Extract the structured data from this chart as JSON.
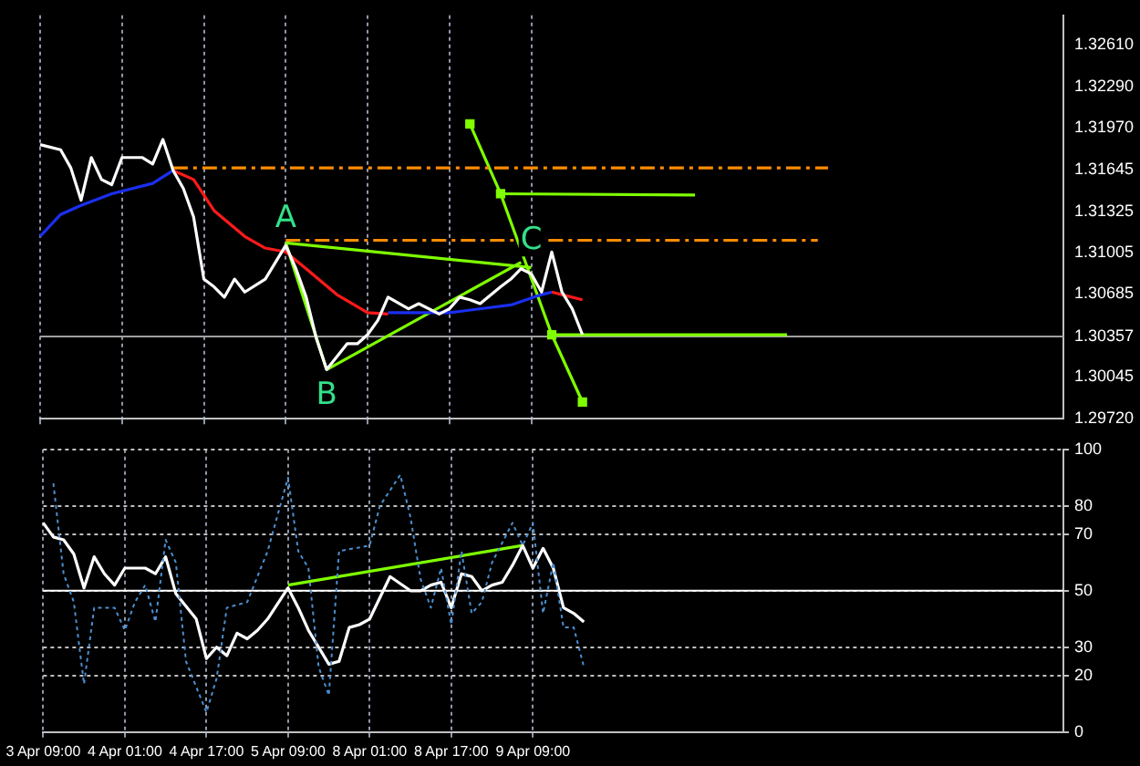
{
  "chart_data": [
    {
      "type": "line",
      "ylim": [
        1.2972,
        1.3284
      ],
      "categories": [
        "3 Apr 09:00",
        null,
        null,
        null,
        null,
        null,
        null,
        null,
        "4 Apr 01:00",
        null,
        null,
        null,
        null,
        null,
        null,
        null,
        "4 Apr 17:00",
        null,
        null,
        null,
        null,
        null,
        null,
        null,
        "5 Apr 09:00",
        null,
        null,
        null,
        null,
        null,
        null,
        null,
        "8 Apr 01:00",
        null,
        null,
        null,
        null,
        null,
        null,
        null,
        "8 Apr 17:00",
        null,
        null,
        null,
        null,
        null,
        null,
        null,
        "9 Apr 09:00",
        null,
        null,
        null,
        null,
        null,
        null,
        null,
        null,
        null,
        null,
        null,
        null,
        null,
        null,
        null,
        null,
        null,
        null,
        null,
        null,
        null,
        null,
        null,
        null,
        null,
        null,
        null,
        null,
        null,
        null,
        null,
        null,
        null,
        null,
        null,
        null,
        null,
        null,
        null,
        null,
        null,
        null,
        null,
        null,
        null,
        null,
        null,
        null,
        null,
        null,
        null,
        null
      ],
      "yticks": [
        {
          "value": 1.3261,
          "label": "1.32610"
        },
        {
          "value": 1.3229,
          "label": "1.32290"
        },
        {
          "value": 1.3197,
          "label": "1.31970"
        },
        {
          "value": 1.31645,
          "label": "1.31645"
        },
        {
          "value": 1.31325,
          "label": "1.31325"
        },
        {
          "value": 1.31005,
          "label": "1.31005"
        },
        {
          "value": 1.30685,
          "label": "1.30685"
        },
        1.30357,
        {
          "value": 1.30045,
          "label": "1.30045"
        },
        {
          "value": 1.2972,
          "label": "1.29720"
        }
      ],
      "tick_labels": "y",
      "grid": "x",
      "legend": false,
      "marker": "none",
      "line_style": "solid",
      "series": [
        {
          "color": "#ffffff",
          "values": [
            1.3184,
            null,
            1.318,
            1.3166,
            1.3141,
            1.3174,
            1.3157,
            1.3153,
            1.3174,
            null,
            1.3174,
            1.3169,
            1.3188,
            1.3164,
            1.315,
            1.3128,
            1.308,
            1.3074,
            1.3066,
            1.308,
            1.307,
            null,
            1.308,
            null,
            1.3106,
            1.3088,
            1.3066,
            1.3034,
            1.301,
            null,
            1.303,
            1.303,
            1.3037,
            1.3048,
            1.3066,
            null,
            1.3057,
            1.3061,
            null,
            1.3053,
            1.3057,
            1.3066,
            1.3064,
            1.3061,
            null,
            1.3074,
            1.308,
            1.3088,
            1.3084,
            1.307,
            1.3101,
            1.307,
            1.3057,
            1.3037,
            null,
            null,
            null,
            null,
            null,
            null,
            null,
            null,
            null,
            null,
            null,
            null,
            null,
            null,
            null,
            null,
            null,
            null,
            null,
            null,
            null,
            null,
            null,
            null,
            null,
            null,
            null,
            null,
            null,
            null,
            null,
            null,
            null,
            null,
            null,
            null,
            null,
            null,
            null,
            null,
            null,
            null,
            null,
            null,
            null,
            null,
            null
          ]
        },
        {
          "color": "#1a2ff0",
          "values": [
            1.3113,
            null,
            1.313,
            null,
            1.3137,
            null,
            null,
            1.3146,
            null,
            null,
            null,
            1.3154,
            null,
            1.3164,
            null,
            null,
            null,
            null,
            null,
            null,
            null,
            null,
            null,
            null,
            null,
            null,
            null,
            null,
            null,
            null,
            null,
            null,
            null,
            null,
            null,
            null,
            null,
            null,
            null,
            null,
            null,
            null,
            null,
            null,
            null,
            null,
            null,
            null,
            null,
            null,
            null,
            null,
            null,
            null,
            null,
            null,
            null,
            null,
            null,
            null,
            null,
            null,
            null,
            null,
            null,
            null,
            null,
            null,
            null,
            null,
            null,
            null,
            null,
            null,
            null,
            null,
            null,
            null,
            null,
            null,
            null,
            null,
            null,
            null,
            null,
            null,
            null,
            null,
            null,
            null,
            null,
            null,
            null,
            null,
            null,
            null,
            null,
            null,
            null,
            null,
            null
          ]
        },
        {
          "color": "#ff1a1a",
          "values": [
            null,
            null,
            null,
            null,
            null,
            null,
            null,
            null,
            null,
            null,
            null,
            null,
            null,
            1.3164,
            null,
            1.3157,
            null,
            1.3133,
            null,
            null,
            1.3113,
            null,
            1.3104,
            null,
            1.3101,
            null,
            1.3088,
            null,
            null,
            1.3068,
            null,
            null,
            1.3054,
            null,
            1.3053,
            null,
            null,
            null,
            null,
            null,
            null,
            null,
            null,
            null,
            null,
            null,
            null,
            null,
            null,
            null,
            null,
            null,
            null,
            null,
            null,
            null,
            null,
            null,
            null,
            null,
            null,
            null,
            null,
            null,
            null,
            null,
            null,
            null,
            null,
            null,
            null,
            null,
            null,
            null,
            null,
            null,
            null,
            null,
            null,
            null,
            null,
            null,
            null,
            null,
            null,
            null,
            null,
            null,
            null,
            null,
            null,
            null,
            null,
            null,
            null,
            null,
            null,
            null,
            null,
            null,
            null
          ]
        },
        {
          "color": "#1a2ff0",
          "values": [
            null,
            null,
            null,
            null,
            null,
            null,
            null,
            null,
            null,
            null,
            null,
            null,
            null,
            null,
            null,
            null,
            null,
            null,
            null,
            null,
            null,
            null,
            null,
            null,
            null,
            null,
            null,
            null,
            null,
            null,
            null,
            null,
            null,
            null,
            1.3054,
            null,
            null,
            null,
            null,
            null,
            1.3054,
            null,
            null,
            null,
            null,
            null,
            1.306,
            null,
            null,
            1.3068,
            1.307,
            null,
            null,
            null,
            null,
            null,
            null,
            null,
            null,
            null,
            null,
            null,
            null,
            null,
            null,
            null,
            null,
            null,
            null,
            null,
            null,
            null,
            null,
            null,
            null,
            null,
            null,
            null,
            null,
            null,
            null,
            null,
            null,
            null,
            null,
            null,
            null,
            null,
            null,
            null,
            null,
            null,
            null,
            null,
            null,
            null,
            null,
            null,
            null,
            null,
            null
          ]
        },
        {
          "color": "#ff1a1a",
          "values": [
            null,
            null,
            null,
            null,
            null,
            null,
            null,
            null,
            null,
            null,
            null,
            null,
            null,
            null,
            null,
            null,
            null,
            null,
            null,
            null,
            null,
            null,
            null,
            null,
            null,
            null,
            null,
            null,
            null,
            null,
            null,
            null,
            null,
            null,
            null,
            null,
            null,
            null,
            null,
            null,
            null,
            null,
            null,
            null,
            null,
            null,
            null,
            null,
            null,
            null,
            1.307,
            1.3068,
            null,
            1.3064,
            null,
            null,
            null,
            null,
            null,
            null,
            null,
            null,
            null,
            null,
            null,
            null,
            null,
            null,
            null,
            null,
            null,
            null,
            null,
            null,
            null,
            null,
            null,
            null,
            null,
            null,
            null,
            null,
            null,
            null,
            null,
            null,
            null,
            null,
            null,
            null,
            null,
            null,
            null,
            null,
            null,
            null,
            null,
            null,
            null,
            null,
            null
          ]
        },
        {
          "color": "#ff8c00",
          "line_style": "dashed",
          "values": [
            null,
            null,
            null,
            null,
            null,
            null,
            null,
            null,
            null,
            null,
            null,
            null,
            null,
            1.3166,
            null,
            null,
            null,
            null,
            null,
            null,
            null,
            null,
            null,
            null,
            null,
            null,
            null,
            null,
            null,
            null,
            null,
            null,
            null,
            null,
            null,
            null,
            null,
            null,
            null,
            null,
            null,
            null,
            null,
            null,
            null,
            null,
            null,
            null,
            null,
            null,
            null,
            null,
            null,
            null,
            null,
            null,
            null,
            null,
            null,
            null,
            null,
            null,
            null,
            null,
            null,
            null,
            null,
            null,
            null,
            null,
            null,
            null,
            null,
            null,
            null,
            null,
            null,
            1.3166,
            null,
            null,
            null,
            null,
            null,
            null,
            null,
            null,
            null,
            null,
            null,
            null,
            null,
            null,
            null,
            null,
            null,
            null,
            null,
            null,
            null,
            null,
            null
          ]
        },
        {
          "color": "#ff8c00",
          "line_style": "dashed",
          "values": [
            null,
            null,
            null,
            null,
            null,
            null,
            null,
            null,
            null,
            null,
            null,
            null,
            null,
            null,
            null,
            null,
            null,
            null,
            null,
            null,
            null,
            null,
            null,
            null,
            1.311,
            null,
            null,
            null,
            null,
            null,
            null,
            null,
            null,
            null,
            null,
            null,
            null,
            null,
            null,
            null,
            null,
            null,
            null,
            null,
            null,
            null,
            null,
            null,
            null,
            null,
            null,
            null,
            null,
            null,
            null,
            null,
            null,
            null,
            null,
            null,
            null,
            null,
            null,
            null,
            null,
            null,
            null,
            null,
            null,
            null,
            null,
            null,
            null,
            null,
            null,
            null,
            1.311,
            null,
            null,
            null,
            null,
            null,
            null,
            null,
            null,
            null,
            null,
            null,
            null,
            null,
            null,
            null,
            null,
            null,
            null,
            null,
            null,
            null,
            null,
            null,
            null
          ]
        },
        {
          "color": "#7fff00",
          "values": [
            null,
            null,
            null,
            null,
            null,
            null,
            null,
            null,
            null,
            null,
            null,
            null,
            null,
            null,
            null,
            null,
            null,
            null,
            null,
            null,
            null,
            null,
            null,
            null,
            1.3108,
            null,
            null,
            null,
            null,
            null,
            null,
            null,
            null,
            null,
            null,
            null,
            null,
            null,
            null,
            null,
            null,
            null,
            null,
            null,
            null,
            null,
            null,
            null,
            1.3089,
            null,
            null,
            null,
            null,
            null,
            null,
            null,
            null,
            null,
            null,
            null,
            null,
            null,
            null,
            null,
            null,
            null,
            null,
            null,
            null,
            null,
            null,
            null,
            null,
            null,
            null,
            null,
            null,
            null,
            null,
            null,
            null,
            null,
            null,
            null,
            null,
            null,
            null,
            null,
            null,
            null,
            null,
            null,
            null,
            null,
            null,
            null,
            null,
            null,
            null,
            null,
            null
          ]
        },
        {
          "color": "#7fff00",
          "values": [
            null,
            null,
            null,
            null,
            null,
            null,
            null,
            null,
            null,
            null,
            null,
            null,
            null,
            null,
            null,
            null,
            null,
            null,
            null,
            null,
            null,
            null,
            null,
            null,
            1.3108,
            null,
            null,
            null,
            1.301,
            null,
            null,
            null,
            null,
            null,
            null,
            null,
            null,
            null,
            null,
            null,
            null,
            null,
            null,
            null,
            null,
            null,
            null,
            null,
            null,
            null,
            null,
            null,
            null,
            null,
            null,
            null,
            null,
            null,
            null,
            null,
            null,
            null,
            null,
            null,
            null,
            null,
            null,
            null,
            null,
            null,
            null,
            null,
            null,
            null,
            null,
            null,
            null,
            null,
            null,
            null,
            null,
            null,
            null,
            null,
            null,
            null,
            null,
            null,
            null,
            null,
            null,
            null,
            null,
            null,
            null,
            null,
            null,
            null,
            null,
            null,
            null
          ]
        },
        {
          "color": "#7fff00",
          "values": [
            null,
            null,
            null,
            null,
            null,
            null,
            null,
            null,
            null,
            null,
            null,
            null,
            null,
            null,
            null,
            null,
            null,
            null,
            null,
            null,
            null,
            null,
            null,
            null,
            null,
            null,
            null,
            null,
            1.301,
            null,
            null,
            null,
            null,
            null,
            null,
            null,
            null,
            null,
            null,
            null,
            null,
            null,
            null,
            null,
            null,
            null,
            null,
            1.3093,
            null,
            null,
            null,
            null,
            null,
            null,
            null,
            null,
            null,
            null,
            null,
            null,
            null,
            null,
            null,
            null,
            null,
            null,
            null,
            null,
            null,
            null,
            null,
            null,
            null,
            null,
            null,
            null,
            null,
            null,
            null,
            null,
            null,
            null,
            null,
            null,
            null,
            null,
            null,
            null,
            null,
            null,
            null,
            null,
            null,
            null,
            null,
            null,
            null,
            null,
            null,
            null,
            null
          ]
        },
        {
          "color": "#7fff00",
          "marker": "square",
          "values": [
            null,
            null,
            null,
            null,
            null,
            null,
            null,
            null,
            null,
            null,
            null,
            null,
            null,
            null,
            null,
            null,
            null,
            null,
            null,
            null,
            null,
            null,
            null,
            null,
            null,
            null,
            null,
            null,
            null,
            null,
            null,
            null,
            null,
            null,
            null,
            null,
            null,
            null,
            null,
            null,
            null,
            null,
            1.32,
            null,
            null,
            1.3146,
            null,
            null,
            null,
            null,
            1.3037,
            null,
            null,
            1.2985,
            null,
            null,
            null,
            null,
            null,
            null,
            null,
            null,
            null,
            null,
            null,
            null,
            null,
            null,
            null,
            null,
            null,
            null,
            null,
            null,
            null,
            null,
            null,
            null,
            null,
            null,
            null,
            null,
            null,
            null,
            null,
            null,
            null,
            null,
            null,
            null,
            null,
            null,
            null,
            null,
            null,
            null,
            null,
            null,
            null,
            null,
            null
          ]
        },
        {
          "color": "#7fff00",
          "values": [
            null,
            null,
            null,
            null,
            null,
            null,
            null,
            null,
            null,
            null,
            null,
            null,
            null,
            null,
            null,
            null,
            null,
            null,
            null,
            null,
            null,
            null,
            null,
            null,
            null,
            null,
            null,
            null,
            null,
            null,
            null,
            null,
            null,
            null,
            null,
            null,
            null,
            null,
            null,
            null,
            null,
            null,
            null,
            null,
            null,
            1.3146,
            null,
            null,
            null,
            null,
            null,
            null,
            null,
            null,
            null,
            null,
            null,
            null,
            null,
            null,
            null,
            null,
            null,
            null,
            1.3145,
            null,
            null,
            null,
            null,
            null,
            null,
            null,
            null,
            null,
            null,
            null,
            null,
            null,
            null,
            null,
            null,
            null,
            null,
            null,
            null,
            null,
            null,
            null,
            null,
            null,
            null,
            null,
            null,
            null,
            null,
            null,
            null,
            null,
            null,
            null,
            null
          ]
        },
        {
          "color": "#7fff00",
          "values": [
            null,
            null,
            null,
            null,
            null,
            null,
            null,
            null,
            null,
            null,
            null,
            null,
            null,
            null,
            null,
            null,
            null,
            null,
            null,
            null,
            null,
            null,
            null,
            null,
            null,
            null,
            null,
            null,
            null,
            null,
            null,
            null,
            null,
            null,
            null,
            null,
            null,
            null,
            null,
            null,
            null,
            null,
            null,
            null,
            null,
            null,
            null,
            null,
            null,
            null,
            1.3037,
            null,
            null,
            null,
            null,
            null,
            null,
            null,
            null,
            null,
            null,
            null,
            null,
            null,
            null,
            null,
            null,
            null,
            null,
            null,
            null,
            null,
            null,
            1.3037,
            null,
            null,
            null,
            null,
            null,
            null,
            null,
            null,
            null,
            null,
            null,
            null,
            null,
            null,
            null,
            null,
            null,
            null,
            null,
            null,
            null,
            null,
            null,
            null,
            null,
            null,
            null
          ]
        }
      ],
      "ref_lines": [
        {
          "axis": "y",
          "value": 1.30357,
          "color": "#a0a0a0"
        }
      ],
      "annotations": [
        {
          "text": "A",
          "x": "5 Apr 09:00",
          "y": 1.3106
        },
        {
          "text": "B",
          "y": 1.301
        },
        {
          "text": "C",
          "x": "9 Apr 09:00",
          "y": 1.3089
        }
      ]
    },
    {
      "type": "line",
      "ylim": [
        0,
        100
      ],
      "categories": [
        "3 Apr 09:00",
        null,
        null,
        null,
        null,
        null,
        null,
        null,
        "4 Apr 01:00",
        null,
        null,
        null,
        null,
        null,
        null,
        null,
        "4 Apr 17:00",
        null,
        null,
        null,
        null,
        null,
        null,
        null,
        "5 Apr 09:00",
        null,
        null,
        null,
        null,
        null,
        null,
        null,
        "8 Apr 01:00",
        null,
        null,
        null,
        null,
        null,
        null,
        null,
        "8 Apr 17:00",
        null,
        null,
        null,
        null,
        null,
        null,
        null,
        "9 Apr 09:00",
        null,
        null,
        null,
        null,
        null,
        null,
        null,
        null,
        null,
        null,
        null,
        null,
        null,
        null,
        null,
        null,
        null,
        null,
        null,
        null,
        null,
        null,
        null,
        null,
        null,
        null,
        null,
        null,
        null,
        null,
        null,
        null,
        null,
        null,
        null,
        null,
        null,
        null,
        null,
        null,
        null,
        null,
        null,
        null,
        null,
        null,
        null,
        null,
        null,
        null,
        null,
        null
      ],
      "yticks": [
        0,
        20,
        30,
        50,
        70,
        80,
        100
      ],
      "grid": true,
      "legend": false,
      "marker": "none",
      "line_style": "solid",
      "series": [
        {
          "color": "#4a8fd0",
          "line_style": "dotted",
          "values": [
            null,
            88,
            56,
            46,
            17,
            44,
            null,
            44,
            36,
            46,
            52,
            39,
            68,
            60,
            25,
            null,
            7,
            19,
            44,
            null,
            46,
            null,
            64,
            null,
            90,
            64,
            58,
            23,
            13,
            64,
            null,
            null,
            66,
            80,
            null,
            91,
            76,
            54,
            44,
            58,
            38,
            64,
            42,
            46,
            60,
            null,
            74,
            66,
            74,
            42,
            60,
            37,
            37,
            23,
            null,
            null,
            null,
            null,
            null,
            null,
            null,
            null,
            null,
            null,
            null,
            null,
            null,
            null,
            null,
            null,
            null,
            null,
            null,
            null,
            null,
            null,
            null,
            null,
            null,
            null,
            null,
            null,
            null,
            null,
            null,
            null,
            null,
            null,
            null,
            null,
            null,
            null,
            null,
            null,
            null,
            null,
            null,
            null,
            null,
            null,
            null
          ]
        },
        {
          "color": "#ffffff",
          "values": [
            74,
            69,
            68,
            63,
            51,
            62,
            56,
            52,
            58,
            null,
            58,
            56,
            62,
            49,
            null,
            40,
            26,
            30,
            27,
            35,
            33,
            36,
            40,
            null,
            51,
            44,
            36,
            null,
            24,
            25,
            37,
            38,
            40,
            null,
            55,
            null,
            50,
            50,
            52,
            53,
            44,
            56,
            55,
            50,
            52,
            53,
            59,
            66,
            58,
            65,
            58,
            44,
            42,
            39,
            null,
            null,
            null,
            null,
            null,
            null,
            null,
            null,
            null,
            null,
            null,
            null,
            null,
            null,
            null,
            null,
            null,
            null,
            null,
            null,
            null,
            null,
            null,
            null,
            null,
            null,
            null,
            null,
            null,
            null,
            null,
            null,
            null,
            null,
            null,
            null,
            null,
            null,
            null,
            null,
            null,
            null,
            null,
            null,
            null,
            null,
            null
          ]
        },
        {
          "color": "#7fff00",
          "values": [
            null,
            null,
            null,
            null,
            null,
            null,
            null,
            null,
            null,
            null,
            null,
            null,
            null,
            null,
            null,
            null,
            null,
            null,
            null,
            null,
            null,
            null,
            null,
            null,
            52,
            null,
            null,
            null,
            null,
            null,
            null,
            null,
            null,
            null,
            null,
            null,
            null,
            null,
            null,
            null,
            null,
            null,
            null,
            null,
            null,
            null,
            null,
            66,
            null,
            null,
            null,
            null,
            null,
            null,
            null,
            null,
            null,
            null,
            null,
            null,
            null,
            null,
            null,
            null,
            null,
            null,
            null,
            null,
            null,
            null,
            null,
            null,
            null,
            null,
            null,
            null,
            null,
            null,
            null,
            null,
            null,
            null,
            null,
            null,
            null,
            null,
            null,
            null,
            null,
            null,
            null,
            null,
            null,
            null,
            null,
            null,
            null,
            null,
            null,
            null,
            null
          ]
        }
      ],
      "ref_lines": [
        {
          "axis": "y",
          "value": 50,
          "color": "#ffffff"
        }
      ]
    }
  ]
}
